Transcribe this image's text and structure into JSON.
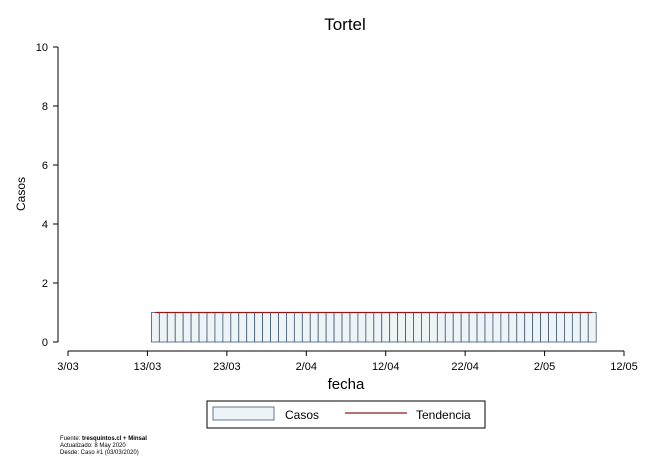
{
  "chart_data": {
    "type": "bar",
    "title": "Tortel",
    "xlabel": "fecha",
    "ylabel": "Casos",
    "ylim": [
      0,
      10
    ],
    "yticks": [
      "0",
      "2",
      "4",
      "6",
      "8",
      "10"
    ],
    "xlim": [
      "2020-03-03",
      "2020-05-12"
    ],
    "xticks": [
      {
        "label": "3/03",
        "date": "2020-03-03"
      },
      {
        "label": "13/03",
        "date": "2020-03-13"
      },
      {
        "label": "23/03",
        "date": "2020-03-23"
      },
      {
        "label": "2/04",
        "date": "2020-04-02"
      },
      {
        "label": "12/04",
        "date": "2020-04-12"
      },
      {
        "label": "22/04",
        "date": "2020-04-22"
      },
      {
        "label": "2/05",
        "date": "2020-05-02"
      },
      {
        "label": "12/05",
        "date": "2020-05-12"
      }
    ],
    "series": [
      {
        "name": "Casos",
        "type": "bar",
        "color": "#eef3f6",
        "edge_color": "#3b5a78",
        "x_start": "2020-03-14",
        "x_end": "2020-05-08",
        "value": 1
      },
      {
        "name": "Tendencia",
        "type": "line",
        "color": "#8b1a1a",
        "x": [
          "2020-03-14",
          "2020-05-08"
        ],
        "values": [
          1,
          1
        ]
      }
    ],
    "legend": {
      "position": "bottom-center",
      "items": [
        "Casos",
        "Tendencia"
      ]
    },
    "grid": false
  },
  "footer": {
    "source_prefix": "Fuente: ",
    "source_bold": "tresquintos.cl + Minsal",
    "updated": "Actualizado: 8 May 2020",
    "since": "Desde: Caso #1  (03/03/2020)"
  }
}
